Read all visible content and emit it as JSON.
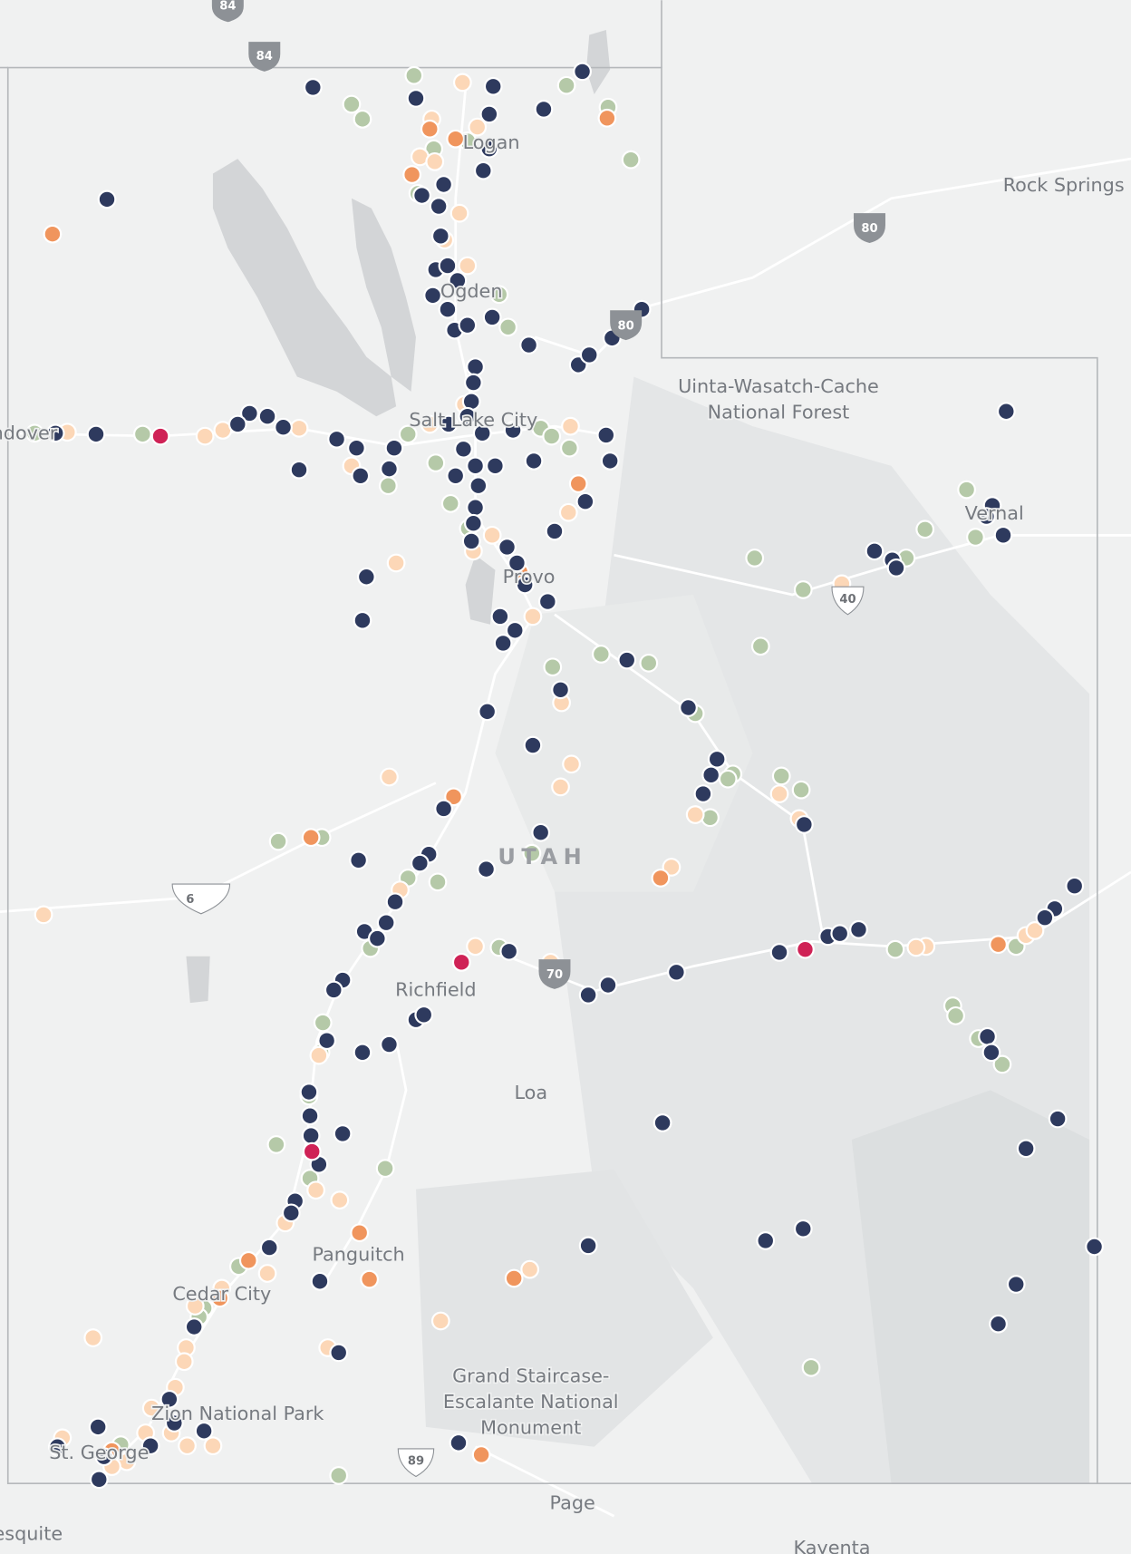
{
  "map": {
    "places": [
      "Rock Springs",
      "Uinta-Wasatch-Cache",
      "National Forest",
      "Vernal",
      "Provo",
      "UTAH",
      "Richfield",
      "Loa",
      "Panguitch",
      "Cedar City",
      "Zion National Park",
      "Grand Staircase-",
      "Escalante National",
      "Monument",
      "Page",
      "St. George",
      "Salt Lake City",
      "Ogden",
      "Logan",
      "Wendover",
      "Mesquite",
      "Kayenta"
    ],
    "shields": [
      "84",
      "84",
      "80",
      "80",
      "40",
      "6",
      "70",
      "89"
    ]
  }
}
